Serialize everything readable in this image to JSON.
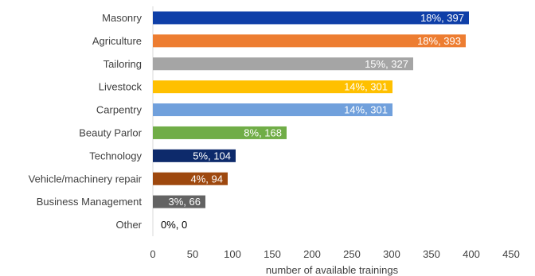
{
  "chart_data": {
    "type": "bar",
    "orientation": "horizontal",
    "categories": [
      "Masonry",
      "Agriculture",
      "Tailoring",
      "Livestock",
      "Carpentry",
      "Beauty Parlor",
      "Technology",
      "Vehicle/machinery repair",
      "Business Management",
      "Other"
    ],
    "values": [
      397,
      393,
      327,
      301,
      301,
      168,
      104,
      94,
      66,
      0
    ],
    "data_labels": [
      "18%, 397",
      "18%, 393",
      "15%, 327",
      "14%, 301",
      "14%, 301",
      "8%, 168",
      "5%, 104",
      "4%, 94",
      "3%, 66",
      "0%, 0"
    ],
    "colors": [
      "#0f3fa8",
      "#ed7d31",
      "#a5a5a5",
      "#ffc000",
      "#70a0dc",
      "#70ad47",
      "#0d2a6b",
      "#9e480e",
      "#636363",
      "#5a82c8"
    ],
    "title": "",
    "xlabel": "number of available trainings",
    "ylabel": "",
    "xlim": [
      0,
      450
    ],
    "x_ticks": [
      0,
      50,
      100,
      150,
      200,
      250,
      300,
      350,
      400,
      450
    ],
    "grid": false,
    "legend": "none"
  }
}
